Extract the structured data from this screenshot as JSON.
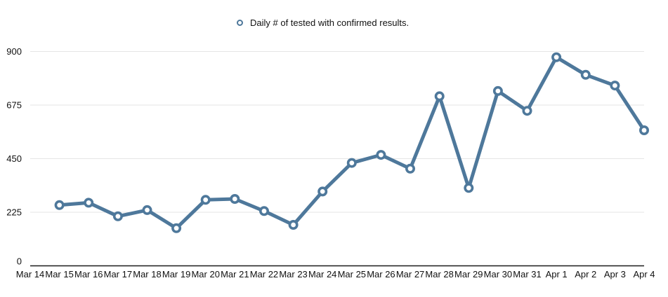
{
  "legend": {
    "label": "Daily # of tested with confirmed results."
  },
  "colors": {
    "line": "#4e789b",
    "marker_fill": "#ffffff",
    "grid": "#e5e5e5",
    "axis": "#1c1c1c",
    "text": "#111111",
    "background": "#ffffff"
  },
  "chart_data": {
    "type": "line",
    "title": "Daily # of tested with confirmed results.",
    "xlabel": "",
    "ylabel": "",
    "categories": [
      "Mar 14",
      "Mar 15",
      "Mar 16",
      "Mar 17",
      "Mar 18",
      "Mar 19",
      "Mar 20",
      "Mar 21",
      "Mar 22",
      "Mar 23",
      "Mar 24",
      "Mar 25",
      "Mar 26",
      "Mar 27",
      "Mar 28",
      "Mar 29",
      "Mar 30",
      "Mar 31",
      "Apr 1",
      "Apr 2",
      "Apr 3",
      "Apr 4"
    ],
    "series": [
      {
        "name": "Daily # of tested with confirmed results.",
        "values": [
          null,
          255,
          265,
          208,
          234,
          158,
          277,
          281,
          230,
          172,
          312,
          432,
          466,
          408,
          712,
          327,
          734,
          651,
          876,
          802,
          757,
          569
        ]
      }
    ],
    "ylim": [
      0,
      900
    ],
    "yticks": [
      0,
      225,
      450,
      675,
      900
    ],
    "grid": "horizontal",
    "legend_position": "top-center",
    "marker": "ring"
  }
}
